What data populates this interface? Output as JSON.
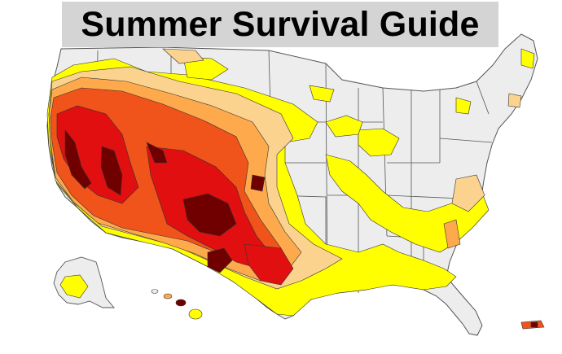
{
  "title": "Summer Survival Guide",
  "map": {
    "subject": "United States drought conditions",
    "colors": {
      "land": "#ededed",
      "borders": "#555555",
      "abnormally_dry": "#ffff00",
      "moderate": "#fbd38f",
      "severe": "#ffa94d",
      "extreme": "#f0541a",
      "exceptional": "#e10f0f",
      "darkest": "#700000"
    }
  }
}
